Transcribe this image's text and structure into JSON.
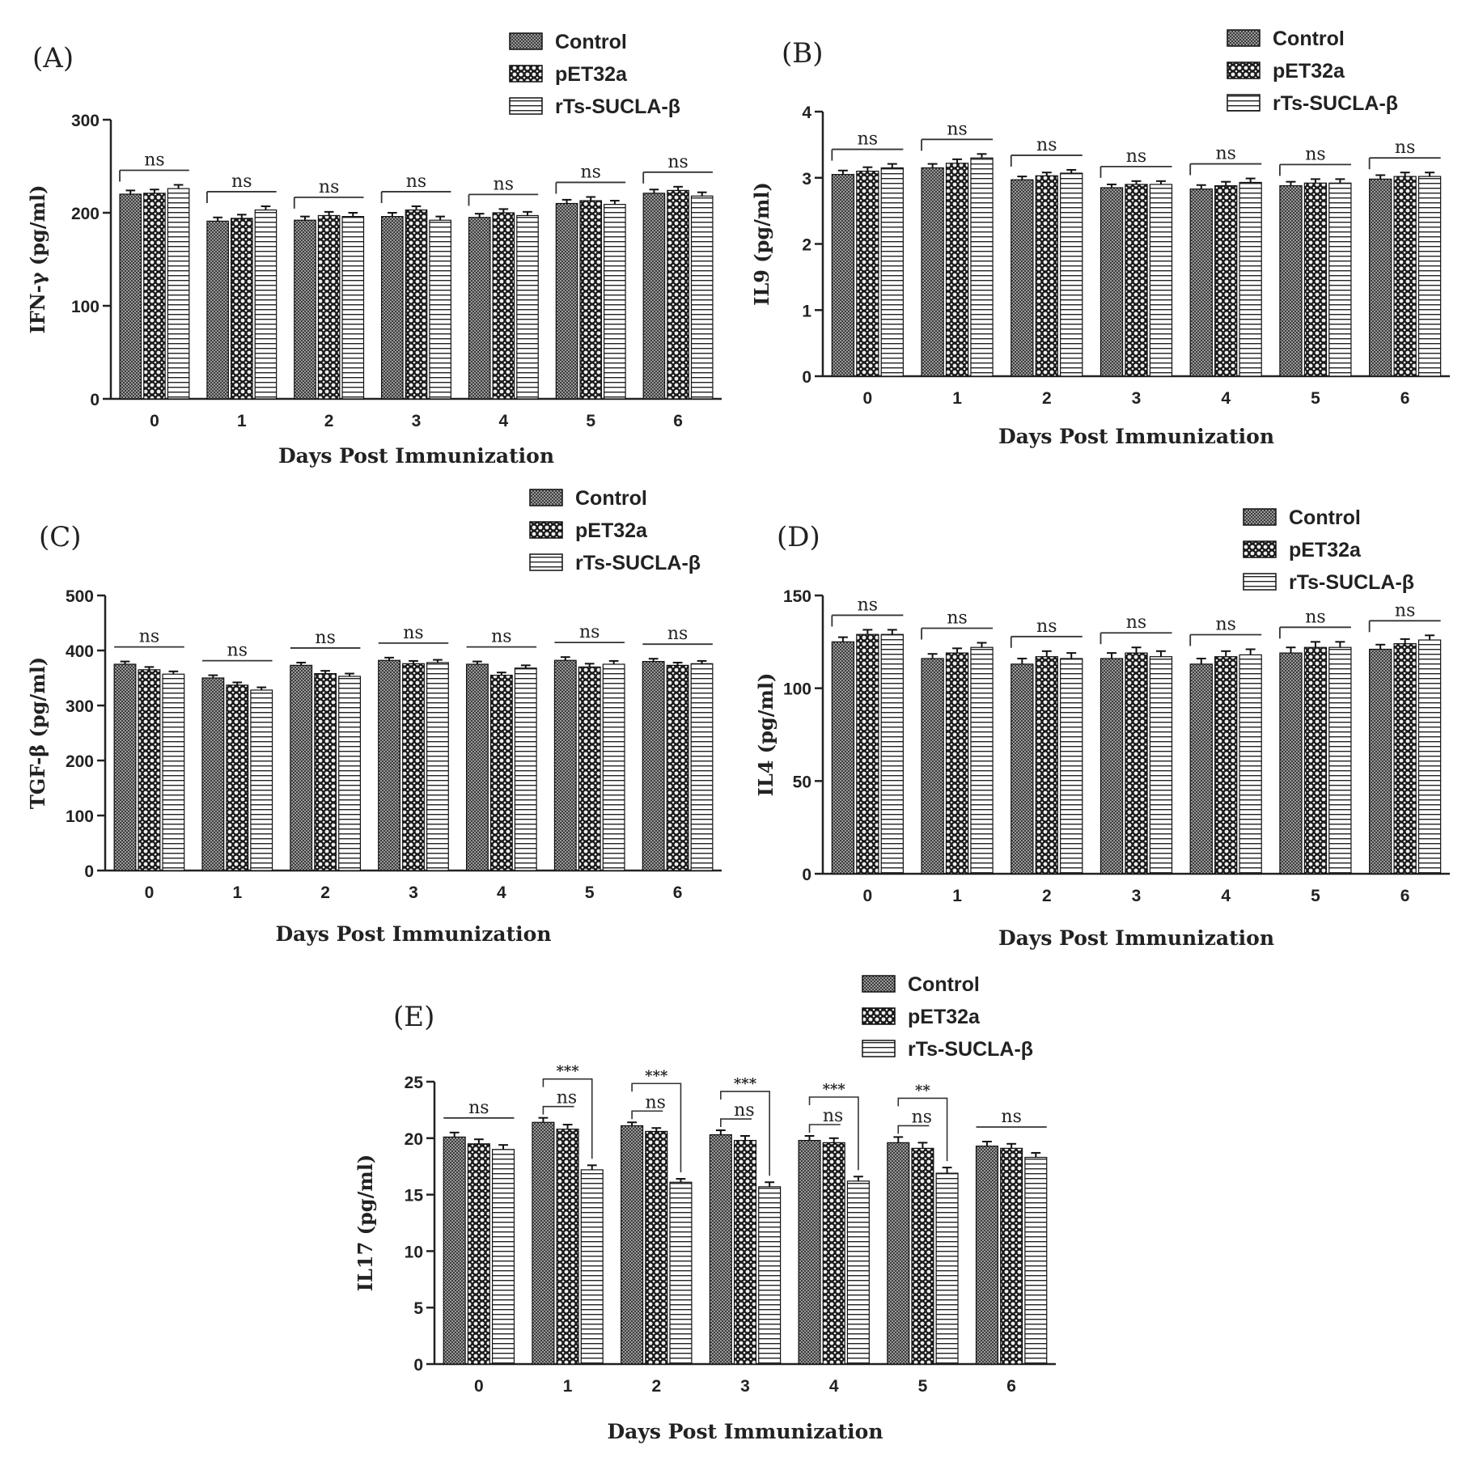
{
  "legend": [
    "Control",
    "pET32a",
    "rTs-SUCLA-β"
  ],
  "chart_data": [
    {
      "type": "bar",
      "panel": "(A)",
      "ylabel": "IFN-γ (pg/ml)",
      "xlabel": "Days Post Immunization",
      "categories": [
        "0",
        "1",
        "2",
        "3",
        "4",
        "5",
        "6"
      ],
      "yticks": [
        "0",
        "100",
        "200",
        "300"
      ],
      "ylim": [
        0,
        300
      ],
      "series": [
        {
          "name": "Control",
          "values": [
            220,
            191,
            192,
            196,
            195,
            210,
            221
          ]
        },
        {
          "name": "pET32a",
          "values": [
            221,
            194,
            197,
            203,
            200,
            213,
            224
          ]
        },
        {
          "name": "rTs-SUCLA-β",
          "values": [
            226,
            203,
            196,
            192,
            197,
            209,
            218
          ]
        }
      ],
      "errors": [
        4,
        4,
        4,
        4,
        4,
        4,
        4
      ],
      "annotations": [
        {
          "group": 0,
          "text": "ns"
        },
        {
          "group": 1,
          "text": "ns"
        },
        {
          "group": 2,
          "text": "ns"
        },
        {
          "group": 3,
          "text": "ns"
        },
        {
          "group": 4,
          "text": "ns"
        },
        {
          "group": 5,
          "text": "ns"
        },
        {
          "group": 6,
          "text": "ns"
        }
      ]
    },
    {
      "type": "bar",
      "panel": "(B)",
      "ylabel": "IL9 (pg/ml)",
      "xlabel": "Days Post Immunization",
      "categories": [
        "0",
        "1",
        "2",
        "3",
        "4",
        "5",
        "6"
      ],
      "yticks": [
        "0",
        "1",
        "2",
        "3",
        "4"
      ],
      "ylim": [
        0,
        4
      ],
      "series": [
        {
          "name": "Control",
          "values": [
            3.05,
            3.15,
            2.97,
            2.85,
            2.83,
            2.88,
            2.98
          ]
        },
        {
          "name": "pET32a",
          "values": [
            3.1,
            3.22,
            3.03,
            2.9,
            2.88,
            2.92,
            3.02
          ]
        },
        {
          "name": "rTs-SUCLA-β",
          "values": [
            3.15,
            3.3,
            3.07,
            2.9,
            2.93,
            2.92,
            3.02
          ]
        }
      ],
      "errors": [
        0.06,
        0.06,
        0.05,
        0.05,
        0.06,
        0.06,
        0.06
      ],
      "annotations": [
        {
          "group": 0,
          "text": "ns"
        },
        {
          "group": 1,
          "text": "ns"
        },
        {
          "group": 2,
          "text": "ns"
        },
        {
          "group": 3,
          "text": "ns"
        },
        {
          "group": 4,
          "text": "ns"
        },
        {
          "group": 5,
          "text": "ns"
        },
        {
          "group": 6,
          "text": "ns"
        }
      ]
    },
    {
      "type": "bar",
      "panel": "(C)",
      "ylabel": "TGF-β (pg/ml)",
      "xlabel": "Days Post Immunization",
      "categories": [
        "0",
        "1",
        "2",
        "3",
        "4",
        "5",
        "6"
      ],
      "yticks": [
        "0",
        "100",
        "200",
        "300",
        "400",
        "500"
      ],
      "ylim": [
        0,
        500
      ],
      "series": [
        {
          "name": "Control",
          "values": [
            375,
            350,
            373,
            382,
            375,
            382,
            380
          ]
        },
        {
          "name": "pET32a",
          "values": [
            365,
            337,
            358,
            376,
            355,
            370,
            373
          ]
        },
        {
          "name": "rTs-SUCLA-β",
          "values": [
            357,
            328,
            353,
            378,
            368,
            375,
            376
          ]
        }
      ],
      "errors": [
        5,
        5,
        5,
        5,
        5,
        6,
        5
      ],
      "annotations": [
        {
          "group": 0,
          "text": "ns"
        },
        {
          "group": 1,
          "text": "ns"
        },
        {
          "group": 2,
          "text": "ns"
        },
        {
          "group": 3,
          "text": "ns"
        },
        {
          "group": 4,
          "text": "ns"
        },
        {
          "group": 5,
          "text": "ns"
        },
        {
          "group": 6,
          "text": "ns"
        }
      ]
    },
    {
      "type": "bar",
      "panel": "(D)",
      "ylabel": "IL4 (pg/ml)",
      "xlabel": "Days Post Immunization",
      "categories": [
        "0",
        "1",
        "2",
        "3",
        "4",
        "5",
        "6"
      ],
      "yticks": [
        "0",
        "50",
        "100",
        "150"
      ],
      "ylim": [
        0,
        150
      ],
      "series": [
        {
          "name": "Control",
          "values": [
            125,
            116,
            113,
            116,
            113,
            119,
            121
          ]
        },
        {
          "name": "pET32a",
          "values": [
            129,
            119,
            117,
            119,
            117,
            122,
            124
          ]
        },
        {
          "name": "rTs-SUCLA-β",
          "values": [
            129,
            122,
            116,
            117,
            118,
            122,
            126
          ]
        }
      ],
      "errors": [
        2.5,
        2.5,
        3,
        3,
        3,
        3,
        2.5
      ],
      "annotations": [
        {
          "group": 0,
          "text": "ns"
        },
        {
          "group": 1,
          "text": "ns"
        },
        {
          "group": 2,
          "text": "ns"
        },
        {
          "group": 3,
          "text": "ns"
        },
        {
          "group": 4,
          "text": "ns"
        },
        {
          "group": 5,
          "text": "ns"
        },
        {
          "group": 6,
          "text": "ns"
        }
      ]
    },
    {
      "type": "bar",
      "panel": "(E)",
      "ylabel": "IL17 (pg/ml)",
      "xlabel": "Days Post Immunization",
      "categories": [
        "0",
        "1",
        "2",
        "3",
        "4",
        "5",
        "6"
      ],
      "yticks": [
        "0",
        "5",
        "10",
        "15",
        "20",
        "25"
      ],
      "ylim": [
        0,
        25
      ],
      "series": [
        {
          "name": "Control",
          "values": [
            20.1,
            21.4,
            21.1,
            20.3,
            19.8,
            19.6,
            19.3
          ]
        },
        {
          "name": "pET32a",
          "values": [
            19.5,
            20.8,
            20.6,
            19.8,
            19.6,
            19.1,
            19.1
          ]
        },
        {
          "name": "rTs-SUCLA-β",
          "values": [
            19.0,
            17.2,
            16.1,
            15.7,
            16.2,
            16.9,
            18.3
          ]
        }
      ],
      "errors": [
        0.4,
        0.4,
        0.3,
        0.4,
        0.4,
        0.5,
        0.4
      ],
      "annotations": [
        {
          "group": 0,
          "text": "ns"
        },
        {
          "group": 1,
          "text": "ns",
          "sig": "***"
        },
        {
          "group": 2,
          "text": "ns",
          "sig": "***"
        },
        {
          "group": 3,
          "text": "ns",
          "sig": "***"
        },
        {
          "group": 4,
          "text": "ns",
          "sig": "***"
        },
        {
          "group": 5,
          "text": "ns",
          "sig": "**"
        },
        {
          "group": 6,
          "text": "ns"
        }
      ]
    }
  ]
}
